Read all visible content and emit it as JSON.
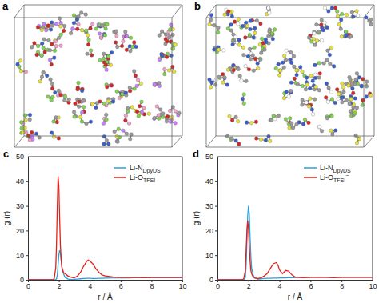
{
  "images": [
    {
      "label": "a"
    },
    {
      "label": "b"
    }
  ],
  "chart_data": [
    {
      "type": "line",
      "title": "c",
      "x_label": "r / Å",
      "y_label": "g (r)",
      "xlim": [
        0,
        10
      ],
      "ylim": [
        0,
        50
      ],
      "xticks": [
        0,
        2,
        4,
        6,
        8,
        10
      ],
      "yticks": [
        0,
        10,
        20,
        30,
        40,
        50
      ],
      "grid": false,
      "legend": "upper right",
      "x": [
        0,
        0.5,
        1.0,
        1.4,
        1.6,
        1.7,
        1.8,
        1.85,
        1.9,
        1.95,
        2.0,
        2.05,
        2.1,
        2.15,
        2.2,
        2.3,
        2.4,
        2.6,
        2.8,
        3.0,
        3.2,
        3.4,
        3.6,
        3.8,
        3.9,
        4.0,
        4.2,
        4.4,
        4.6,
        4.8,
        5.0,
        5.5,
        6.0,
        6.5,
        7.0,
        7.5,
        8.0,
        8.5,
        9.0,
        9.5,
        10.0
      ],
      "series": [
        {
          "name": "Li-NDpyDS",
          "color": "#2b9fd9",
          "values": [
            0,
            0,
            0,
            0,
            0,
            0,
            0,
            0.5,
            2,
            6,
            10,
            12,
            11,
            8,
            5,
            2.5,
            1,
            0.3,
            0.1,
            0.2,
            0.3,
            0.4,
            0.5,
            0.6,
            0.6,
            0.6,
            0.5,
            0.5,
            0.6,
            0.6,
            0.7,
            0.8,
            0.8,
            0.8,
            0.9,
            0.9,
            0.9,
            0.9,
            0.9,
            0.9,
            0.9
          ]
        },
        {
          "name": "Li-OTFSI",
          "color": "#e3211c",
          "values": [
            0,
            0,
            0,
            0,
            0,
            0.5,
            5,
            15,
            30,
            42,
            38,
            25,
            14,
            8,
            5,
            3,
            2.5,
            1.5,
            1,
            0.8,
            1.5,
            3,
            5.5,
            7.5,
            8,
            7.6,
            6.5,
            4.5,
            3,
            2,
            1.6,
            1.2,
            1.0,
            1.1,
            1.0,
            0.9,
            1.0,
            1.0,
            1.0,
            1.0,
            1.0
          ]
        }
      ]
    },
    {
      "type": "line",
      "title": "d",
      "x_label": "r / Å",
      "y_label": "g (r)",
      "xlim": [
        0,
        10
      ],
      "ylim": [
        0,
        50
      ],
      "xticks": [
        0,
        2,
        4,
        6,
        8,
        10
      ],
      "yticks": [
        0,
        10,
        20,
        30,
        40,
        50
      ],
      "grid": false,
      "legend": "upper right",
      "x": [
        0,
        0.5,
        1.0,
        1.4,
        1.6,
        1.7,
        1.8,
        1.85,
        1.9,
        1.95,
        2.0,
        2.05,
        2.1,
        2.15,
        2.2,
        2.3,
        2.4,
        2.6,
        2.8,
        3.0,
        3.2,
        3.4,
        3.6,
        3.8,
        3.9,
        4.0,
        4.2,
        4.4,
        4.6,
        4.8,
        5.0,
        5.5,
        6.0,
        6.5,
        7.0,
        7.5,
        8.0,
        8.5,
        9.0,
        9.5,
        10.0
      ],
      "series": [
        {
          "name": "Li-NDpyDS",
          "color": "#2b9fd9",
          "values": [
            0,
            0,
            0,
            0,
            0,
            0,
            1,
            6,
            16,
            26,
            30,
            27,
            18,
            10,
            5,
            2,
            0.8,
            0.3,
            0.4,
            0.5,
            0.6,
            0.6,
            0.7,
            0.7,
            0.7,
            0.8,
            0.8,
            0.8,
            0.9,
            0.9,
            0.9,
            1,
            1,
            1,
            1,
            1,
            1,
            1,
            1,
            1,
            1
          ]
        },
        {
          "name": "Li-OTFSI−",
          "color": "#e3211c",
          "values": [
            0,
            0,
            0,
            0,
            0,
            0.5,
            4,
            12,
            20,
            24,
            21,
            14,
            8,
            4,
            2.5,
            1.2,
            0.8,
            0.5,
            0.8,
            1.5,
            2.5,
            4.5,
            6.5,
            7,
            6,
            4,
            2.5,
            3.8,
            3.5,
            2,
            1.2,
            0.9,
            1,
            1.1,
            1,
            0.9,
            1,
            1,
            1,
            1,
            1
          ]
        }
      ]
    }
  ]
}
